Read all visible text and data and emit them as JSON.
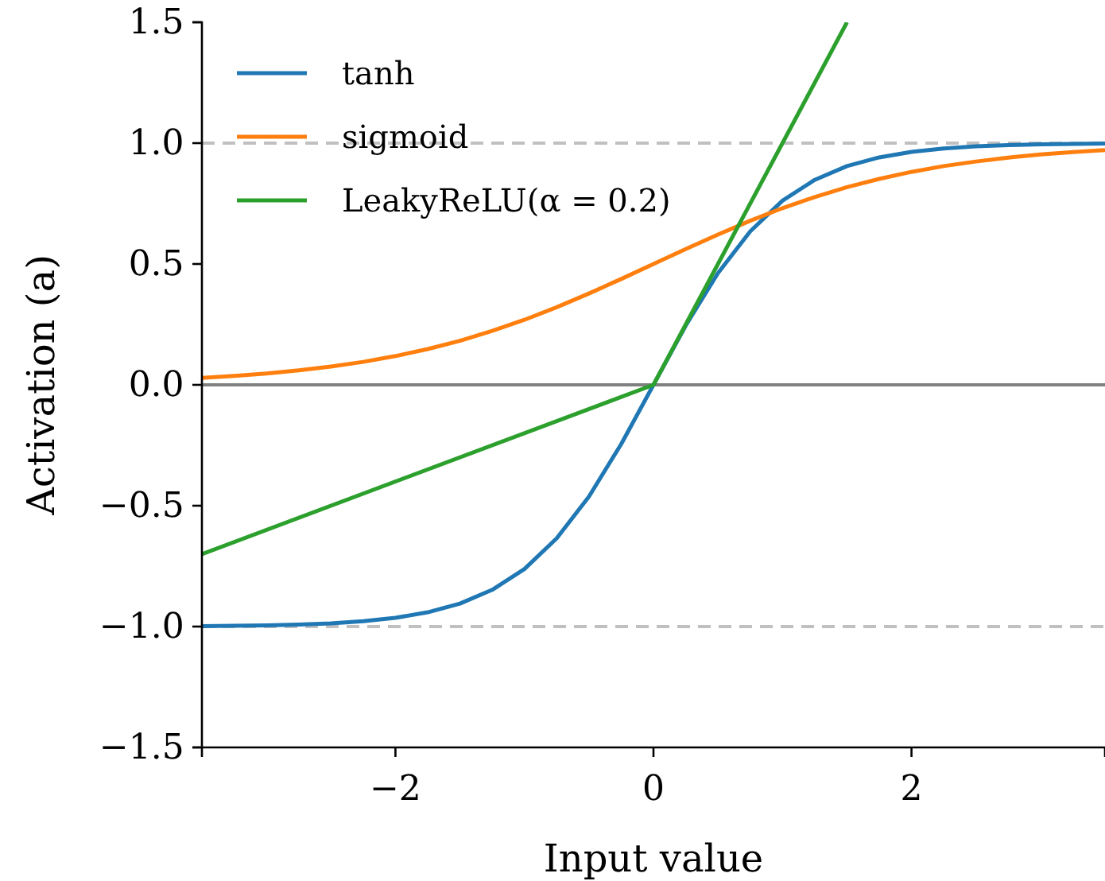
{
  "chart_data": {
    "type": "line",
    "xlabel": "Input value",
    "ylabel": "Activation (a)",
    "x": [
      -3.5,
      -3.25,
      -3,
      -2.75,
      -2.5,
      -2.25,
      -2,
      -1.75,
      -1.5,
      -1.25,
      -1,
      -0.75,
      -0.5,
      -0.25,
      0,
      0.25,
      0.5,
      0.75,
      1,
      1.25,
      1.5,
      1.75,
      2,
      2.25,
      2.5,
      2.75,
      3,
      3.25,
      3.5
    ],
    "series": [
      {
        "name": "tanh",
        "color": "#1f77b4",
        "values": [
          -0.998,
          -0.997,
          -0.995,
          -0.992,
          -0.987,
          -0.978,
          -0.964,
          -0.941,
          -0.905,
          -0.848,
          -0.762,
          -0.635,
          -0.462,
          -0.245,
          0,
          0.245,
          0.462,
          0.635,
          0.762,
          0.848,
          0.905,
          0.941,
          0.964,
          0.978,
          0.987,
          0.992,
          0.995,
          0.997,
          0.998
        ]
      },
      {
        "name": "sigmoid",
        "color": "#ff7f0e",
        "values": [
          0.029,
          0.037,
          0.047,
          0.06,
          0.076,
          0.095,
          0.119,
          0.148,
          0.182,
          0.223,
          0.269,
          0.321,
          0.378,
          0.438,
          0.5,
          0.562,
          0.622,
          0.679,
          0.731,
          0.777,
          0.818,
          0.852,
          0.881,
          0.905,
          0.924,
          0.94,
          0.953,
          0.963,
          0.971
        ]
      },
      {
        "name": "LeakyReLU(α = 0.2)",
        "color": "#2ca02c",
        "x": [
          -3.5,
          0,
          1.5
        ],
        "values": [
          -0.7,
          0,
          1.5
        ]
      }
    ],
    "xlim": [
      -3.5,
      3.5
    ],
    "ylim": [
      -1.5,
      1.5
    ],
    "xticks": [
      {
        "value": -2,
        "label": "−2"
      },
      0,
      2
    ],
    "yticks": [
      {
        "value": -1.5,
        "label": "−1.5"
      },
      {
        "value": -1,
        "label": "−1.0"
      },
      {
        "value": -0.5,
        "label": "−0.5"
      },
      {
        "value": 0,
        "label": "0.0"
      },
      {
        "value": 0.5,
        "label": "0.5"
      },
      {
        "value": 1,
        "label": "1.0"
      },
      {
        "value": 1.5,
        "label": "1.5"
      }
    ],
    "ref_lines": [
      {
        "axis": "y",
        "value": 1,
        "color": "#c0c0c0",
        "line_style": "dashed"
      },
      {
        "axis": "y",
        "value": -1,
        "color": "#c0c0c0",
        "line_style": "dashed"
      },
      {
        "axis": "y",
        "value": 0,
        "color": "#808080",
        "line_style": "solid"
      }
    ],
    "legend": "top left",
    "grid": false,
    "marker": "none",
    "line_style": "solid"
  }
}
